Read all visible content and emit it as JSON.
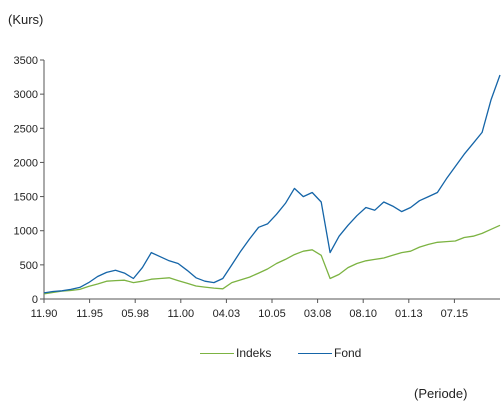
{
  "chart_data": {
    "type": "line",
    "title": "",
    "ylabel": "(Kurs)",
    "xlabel": "(Periode)",
    "ylim": [
      0,
      3500
    ],
    "yticks": [
      "0",
      "500",
      "1000",
      "1500",
      "2000",
      "2500",
      "3000",
      "3500"
    ],
    "xticks": [
      "11.90",
      "11.95",
      "05.98",
      "11.00",
      "04.03",
      "10.05",
      "03.08",
      "08.10",
      "01.13",
      "07.15"
    ],
    "grid": false,
    "legend_position": "bottom",
    "series": [
      {
        "name": "Indeks",
        "color": "#7cb342",
        "values": [
          [
            0,
            75
          ],
          [
            1,
            95
          ],
          [
            2,
            115
          ],
          [
            3,
            125
          ],
          [
            4,
            140
          ],
          [
            5,
            185
          ],
          [
            6,
            220
          ],
          [
            7,
            260
          ],
          [
            8,
            270
          ],
          [
            9,
            275
          ],
          [
            10,
            240
          ],
          [
            11,
            260
          ],
          [
            12,
            290
          ],
          [
            13,
            300
          ],
          [
            14,
            310
          ],
          [
            15,
            270
          ],
          [
            16,
            230
          ],
          [
            17,
            190
          ],
          [
            18,
            175
          ],
          [
            19,
            160
          ],
          [
            20,
            150
          ],
          [
            21,
            240
          ],
          [
            22,
            280
          ],
          [
            23,
            320
          ],
          [
            24,
            380
          ],
          [
            25,
            440
          ],
          [
            26,
            520
          ],
          [
            27,
            580
          ],
          [
            28,
            650
          ],
          [
            29,
            700
          ],
          [
            30,
            720
          ],
          [
            31,
            640
          ],
          [
            32,
            300
          ],
          [
            33,
            360
          ],
          [
            34,
            460
          ],
          [
            35,
            520
          ],
          [
            36,
            560
          ],
          [
            37,
            580
          ],
          [
            38,
            600
          ],
          [
            39,
            640
          ],
          [
            40,
            680
          ],
          [
            41,
            700
          ],
          [
            42,
            760
          ],
          [
            43,
            800
          ],
          [
            44,
            830
          ],
          [
            45,
            840
          ],
          [
            46,
            850
          ],
          [
            47,
            900
          ],
          [
            48,
            920
          ],
          [
            49,
            960
          ],
          [
            50,
            1020
          ],
          [
            51,
            1080
          ]
        ]
      },
      {
        "name": "Fond",
        "color": "#1565a8",
        "values": [
          [
            0,
            90
          ],
          [
            1,
            110
          ],
          [
            2,
            120
          ],
          [
            3,
            140
          ],
          [
            4,
            170
          ],
          [
            5,
            240
          ],
          [
            6,
            330
          ],
          [
            7,
            390
          ],
          [
            8,
            420
          ],
          [
            9,
            380
          ],
          [
            10,
            300
          ],
          [
            11,
            460
          ],
          [
            12,
            680
          ],
          [
            13,
            620
          ],
          [
            14,
            560
          ],
          [
            15,
            520
          ],
          [
            16,
            420
          ],
          [
            17,
            310
          ],
          [
            18,
            260
          ],
          [
            19,
            240
          ],
          [
            20,
            300
          ],
          [
            21,
            500
          ],
          [
            22,
            700
          ],
          [
            23,
            880
          ],
          [
            24,
            1050
          ],
          [
            25,
            1100
          ],
          [
            26,
            1240
          ],
          [
            27,
            1400
          ],
          [
            28,
            1620
          ],
          [
            29,
            1500
          ],
          [
            30,
            1560
          ],
          [
            31,
            1420
          ],
          [
            32,
            680
          ],
          [
            33,
            920
          ],
          [
            34,
            1080
          ],
          [
            35,
            1220
          ],
          [
            36,
            1340
          ],
          [
            37,
            1300
          ],
          [
            38,
            1420
          ],
          [
            39,
            1360
          ],
          [
            40,
            1280
          ],
          [
            41,
            1340
          ],
          [
            42,
            1440
          ],
          [
            43,
            1500
          ],
          [
            44,
            1560
          ],
          [
            45,
            1760
          ],
          [
            46,
            1940
          ],
          [
            47,
            2120
          ],
          [
            48,
            2280
          ],
          [
            49,
            2440
          ],
          [
            50,
            2920
          ],
          [
            51,
            3280
          ]
        ]
      }
    ]
  }
}
